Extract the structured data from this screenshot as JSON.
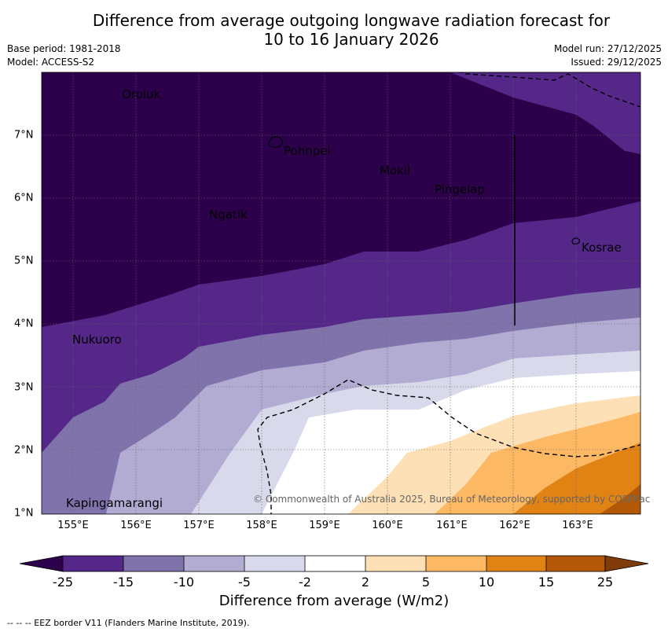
{
  "title_line1": "Difference from average outgoing longwave radiation forecast for",
  "title_line2": "10 to 16 January 2026",
  "base_period": "Base period: 1981-2018",
  "model": "Model: ACCESS-S2",
  "model_run": "Model run: 27/12/2025",
  "issued": "Issued: 29/12/2025",
  "lat_ticks": [
    "7°N",
    "6°N",
    "5°N",
    "4°N",
    "3°N",
    "2°N",
    "1°N"
  ],
  "lon_ticks": [
    "155°E",
    "156°E",
    "157°E",
    "158°E",
    "159°E",
    "160°E",
    "161°E",
    "162°E",
    "163°E"
  ],
  "places": [
    "Oroluk",
    "Pohnpei",
    "Mokil",
    "Pingelap",
    "Ngatik",
    "Kosrae",
    "Nukuoro",
    "Kapingamarangi"
  ],
  "credit": "© Commonwealth of Australia 2025, Bureau of Meteorology, supported by COSPPac",
  "colorbar": {
    "labels": [
      "-25",
      "-15",
      "-10",
      "-5",
      "-2",
      "2",
      "5",
      "10",
      "15",
      "25"
    ],
    "colors": [
      "#2d004b",
      "#542788",
      "#8073ac",
      "#b2abd2",
      "#d8daeb",
      "#ffffff",
      "#fee0b6",
      "#fdb863",
      "#e08214",
      "#b35806",
      "#7f3b08"
    ],
    "title": "Difference from average (W/m2)"
  },
  "footnote": "--  --  -- EEZ border V11 (Flanders Marine Institute, 2019)."
}
